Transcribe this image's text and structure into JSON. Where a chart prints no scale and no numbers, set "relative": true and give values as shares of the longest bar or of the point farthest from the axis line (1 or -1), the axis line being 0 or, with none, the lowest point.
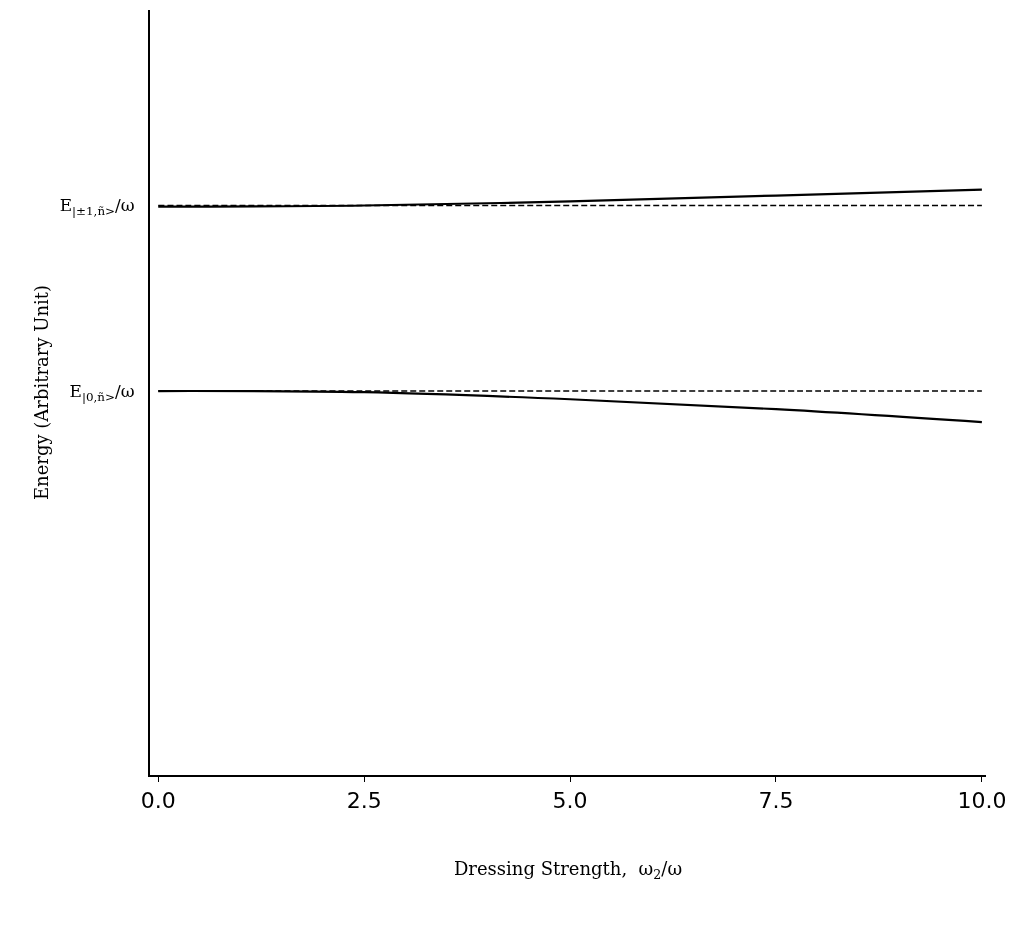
{
  "chart_data": {
    "type": "line",
    "relative": true,
    "xlabel": "Dressing Strength,  ω$_{2}$/ω",
    "ylabel": "Energy (Arbitrary Unit)",
    "xlim": [
      -0.1,
      10.05
    ],
    "xticks": [
      {
        "value": 0,
        "label": "0.0"
      },
      {
        "value": 2.5,
        "label": "2.5"
      },
      {
        "value": 5,
        "label": "5.0"
      },
      {
        "value": 7.5,
        "label": "7.5"
      },
      {
        "value": 10,
        "label": "10.0"
      }
    ],
    "x": [
      0,
      2.5,
      5,
      7.5,
      10
    ],
    "series": [
      {
        "color": "#000000",
        "line_style": "solid",
        "values": [
          0.971,
          0.973,
          0.98,
          0.99,
          1.0
        ]
      },
      {
        "color": "#000000",
        "line_style": "dashed",
        "values": [
          0.973,
          0.973,
          0.973,
          0.973,
          0.973
        ]
      },
      {
        "color": "#000000",
        "line_style": "solid",
        "values": [
          0.656,
          0.654,
          0.642,
          0.625,
          0.603
        ]
      },
      {
        "color": "#000000",
        "line_style": "dashed",
        "values": [
          0.656,
          0.656,
          0.656,
          0.656,
          0.656
        ]
      }
    ],
    "annotations": [
      "E$_{|±1,ñ>}$/ω",
      "E$_{|0,ñ>}$/ω"
    ],
    "marker": "none"
  }
}
